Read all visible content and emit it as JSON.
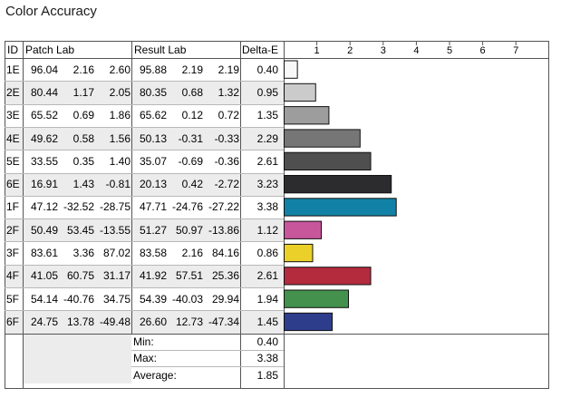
{
  "title": "Color Accuracy",
  "headers": {
    "id": "ID",
    "patch": "Patch Lab",
    "result": "Result Lab",
    "delta": "Delta-E"
  },
  "rows": [
    {
      "id": "1E",
      "p": [
        "96.04",
        "2.16",
        "2.60"
      ],
      "r": [
        "95.88",
        "2.19",
        "2.19"
      ],
      "d": "0.40",
      "color": "#f8f8f8"
    },
    {
      "id": "2E",
      "p": [
        "80.44",
        "1.17",
        "2.05"
      ],
      "r": [
        "80.35",
        "0.68",
        "1.32"
      ],
      "d": "0.95",
      "color": "#cbcbcb"
    },
    {
      "id": "3E",
      "p": [
        "65.52",
        "0.69",
        "1.86"
      ],
      "r": [
        "65.62",
        "0.12",
        "0.72"
      ],
      "d": "1.35",
      "color": "#9d9d9d"
    },
    {
      "id": "4E",
      "p": [
        "49.62",
        "0.58",
        "1.56"
      ],
      "r": [
        "50.13",
        "-0.31",
        "-0.33"
      ],
      "d": "2.29",
      "color": "#767676"
    },
    {
      "id": "5E",
      "p": [
        "33.55",
        "0.35",
        "1.40"
      ],
      "r": [
        "35.07",
        "-0.69",
        "-0.36"
      ],
      "d": "2.61",
      "color": "#4f4f4f"
    },
    {
      "id": "6E",
      "p": [
        "16.91",
        "1.43",
        "-0.81"
      ],
      "r": [
        "20.13",
        "0.42",
        "-2.72"
      ],
      "d": "3.23",
      "color": "#2c2c2e"
    },
    {
      "id": "1F",
      "p": [
        "47.12",
        "-32.52",
        "-28.75"
      ],
      "r": [
        "47.71",
        "-24.76",
        "-27.22"
      ],
      "d": "3.38",
      "color": "#1182a5"
    },
    {
      "id": "2F",
      "p": [
        "50.49",
        "53.45",
        "-13.55"
      ],
      "r": [
        "51.27",
        "50.97",
        "-13.86"
      ],
      "d": "1.12",
      "color": "#c8569b"
    },
    {
      "id": "3F",
      "p": [
        "83.61",
        "3.36",
        "87.02"
      ],
      "r": [
        "83.58",
        "2.16",
        "84.16"
      ],
      "d": "0.86",
      "color": "#ebd02a"
    },
    {
      "id": "4F",
      "p": [
        "41.05",
        "60.75",
        "31.17"
      ],
      "r": [
        "41.92",
        "57.51",
        "25.36"
      ],
      "d": "2.61",
      "color": "#b42b3e"
    },
    {
      "id": "5F",
      "p": [
        "54.14",
        "-40.76",
        "34.75"
      ],
      "r": [
        "54.39",
        "-40.03",
        "29.94"
      ],
      "d": "1.94",
      "color": "#43914c"
    },
    {
      "id": "6F",
      "p": [
        "24.75",
        "13.78",
        "-49.48"
      ],
      "r": [
        "26.60",
        "12.73",
        "-47.34"
      ],
      "d": "1.45",
      "color": "#2e3d8b"
    }
  ],
  "summary": [
    {
      "label": "Min:",
      "value": "0.40"
    },
    {
      "label": "Max:",
      "value": "3.38"
    },
    {
      "label": "Average:",
      "value": "1.85"
    }
  ],
  "chart_data": {
    "type": "bar",
    "orientation": "horizontal",
    "categories": [
      "1E",
      "2E",
      "3E",
      "4E",
      "5E",
      "6E",
      "1F",
      "2F",
      "3F",
      "4F",
      "5F",
      "6F"
    ],
    "values": [
      0.4,
      0.95,
      1.35,
      2.29,
      2.61,
      3.23,
      3.38,
      1.12,
      0.86,
      2.61,
      1.94,
      1.45
    ],
    "bar_colors": [
      "#f8f8f8",
      "#cbcbcb",
      "#9d9d9d",
      "#767676",
      "#4f4f4f",
      "#2c2c2e",
      "#1182a5",
      "#c8569b",
      "#ebd02a",
      "#b42b3e",
      "#43914c",
      "#2e3d8b"
    ],
    "x_ticks": [
      1,
      2,
      3,
      4,
      5,
      6,
      7
    ],
    "xlim": [
      0,
      7.6
    ],
    "grid": false
  }
}
